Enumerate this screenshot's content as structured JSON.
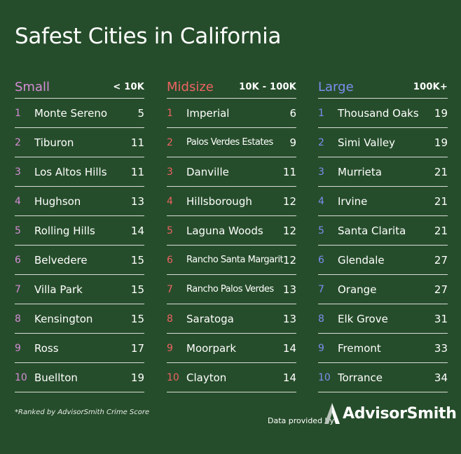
{
  "title": "Safest Cities in California",
  "colors": {
    "background": "#264d2b",
    "small": "#d58cd6",
    "midsize": "#ee6262",
    "large": "#7a8ff0"
  },
  "columns": [
    {
      "category": "Small",
      "range": "< 10K",
      "rows": [
        {
          "rank": "1",
          "city": "Monte Sereno",
          "score": "5"
        },
        {
          "rank": "2",
          "city": "Tiburon",
          "score": "11"
        },
        {
          "rank": "3",
          "city": "Los Altos Hills",
          "score": "11"
        },
        {
          "rank": "4",
          "city": "Hughson",
          "score": "13"
        },
        {
          "rank": "5",
          "city": "Rolling Hills",
          "score": "14"
        },
        {
          "rank": "6",
          "city": "Belvedere",
          "score": "15"
        },
        {
          "rank": "7",
          "city": "Villa Park",
          "score": "15"
        },
        {
          "rank": "8",
          "city": "Kensington",
          "score": "15"
        },
        {
          "rank": "9",
          "city": "Ross",
          "score": "17"
        },
        {
          "rank": "10",
          "city": "Buellton",
          "score": "19"
        }
      ]
    },
    {
      "category": "Midsize",
      "range": "10K - 100K",
      "rows": [
        {
          "rank": "1",
          "city": "Imperial",
          "score": "6"
        },
        {
          "rank": "2",
          "city": "Palos Verdes Estates",
          "score": "9"
        },
        {
          "rank": "3",
          "city": "Danville",
          "score": "11"
        },
        {
          "rank": "4",
          "city": "Hillsborough",
          "score": "12"
        },
        {
          "rank": "5",
          "city": "Laguna Woods",
          "score": "12"
        },
        {
          "rank": "6",
          "city": "Rancho Santa Margarita",
          "score": "12"
        },
        {
          "rank": "7",
          "city": "Rancho Palos Verdes",
          "score": "13"
        },
        {
          "rank": "8",
          "city": "Saratoga",
          "score": "13"
        },
        {
          "rank": "9",
          "city": "Moorpark",
          "score": "14"
        },
        {
          "rank": "10",
          "city": "Clayton",
          "score": "14"
        }
      ]
    },
    {
      "category": "Large",
      "range": "100K+",
      "rows": [
        {
          "rank": "1",
          "city": "Thousand Oaks",
          "score": "19"
        },
        {
          "rank": "2",
          "city": "Simi Valley",
          "score": "19"
        },
        {
          "rank": "3",
          "city": "Murrieta",
          "score": "21"
        },
        {
          "rank": "4",
          "city": "Irvine",
          "score": "21"
        },
        {
          "rank": "5",
          "city": "Santa Clarita",
          "score": "21"
        },
        {
          "rank": "6",
          "city": "Glendale",
          "score": "27"
        },
        {
          "rank": "7",
          "city": "Orange",
          "score": "27"
        },
        {
          "rank": "8",
          "city": "Elk Grove",
          "score": "31"
        },
        {
          "rank": "9",
          "city": "Fremont",
          "score": "33"
        },
        {
          "rank": "10",
          "city": "Torrance",
          "score": "34"
        }
      ]
    }
  ],
  "footnote": "*Ranked by AdvisorSmith Crime Score",
  "provided_by": "Data provided by",
  "logo": {
    "text": "AdvisorSmith",
    "icon": "advisorsmith-logo-icon"
  }
}
